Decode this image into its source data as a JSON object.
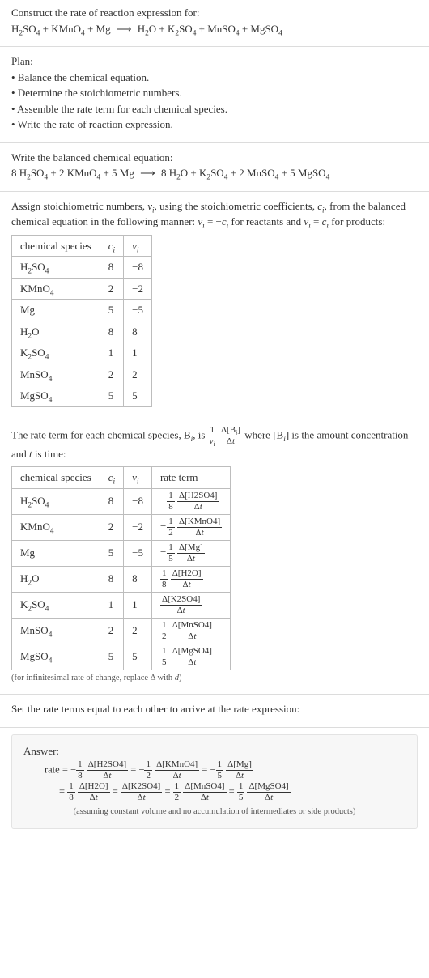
{
  "construct": {
    "intro": "Construct the rate of reaction expression for:",
    "equation_html": "H<sub>2</sub>SO<sub>4</sub> + KMnO<sub>4</sub> + Mg <span class='arrow'>&#10230;</span> H<sub>2</sub>O + K<sub>2</sub>SO<sub>4</sub> + MnSO<sub>4</sub> + MgSO<sub>4</sub>"
  },
  "plan": {
    "title": "Plan:",
    "items": [
      "Balance the chemical equation.",
      "Determine the stoichiometric numbers.",
      "Assemble the rate term for each chemical species.",
      "Write the rate of reaction expression."
    ]
  },
  "balanced": {
    "title": "Write the balanced chemical equation:",
    "equation_html": "8 H<sub>2</sub>SO<sub>4</sub> + 2 KMnO<sub>4</sub> + 5 Mg <span class='arrow'>&#10230;</span> 8 H<sub>2</sub>O + K<sub>2</sub>SO<sub>4</sub> + 2 MnSO<sub>4</sub> + 5 MgSO<sub>4</sub>"
  },
  "assign": {
    "text_html": "Assign stoichiometric numbers, <span class='italic'>ν<sub>i</sub></span>, using the stoichiometric coefficients, <span class='italic'>c<sub>i</sub></span>, from the balanced chemical equation in the following manner: <span class='italic'>ν<sub>i</sub></span> = −<span class='italic'>c<sub>i</sub></span> for reactants and <span class='italic'>ν<sub>i</sub></span> = <span class='italic'>c<sub>i</sub></span> for products:",
    "headers_html": [
      "chemical species",
      "<span class='italic'>c<sub>i</sub></span>",
      "<span class='italic'>ν<sub>i</sub></span>"
    ],
    "rows_html": [
      [
        "H<sub>2</sub>SO<sub>4</sub>",
        "8",
        "−8"
      ],
      [
        "KMnO<sub>4</sub>",
        "2",
        "−2"
      ],
      [
        "Mg",
        "5",
        "−5"
      ],
      [
        "H<sub>2</sub>O",
        "8",
        "8"
      ],
      [
        "K<sub>2</sub>SO<sub>4</sub>",
        "1",
        "1"
      ],
      [
        "MnSO<sub>4</sub>",
        "2",
        "2"
      ],
      [
        "MgSO<sub>4</sub>",
        "5",
        "5"
      ]
    ]
  },
  "rateterm": {
    "text_html": "The rate term for each chemical species, B<sub><span class='italic'>i</span></sub>, is <span class='frac'><span class='num'>1</span><span class='den italic'>ν<sub>i</sub></span></span> <span class='frac'><span class='num'>Δ[B<sub><span class='italic'>i</span></sub>]</span><span class='den'>Δ<span class='italic'>t</span></span></span> where [B<sub><span class='italic'>i</span></sub>] is the amount concentration and <span class='italic'>t</span> is time:",
    "headers_html": [
      "chemical species",
      "<span class='italic'>c<sub>i</sub></span>",
      "<span class='italic'>ν<sub>i</sub></span>",
      "rate term"
    ],
    "rows_html": [
      [
        "H<sub>2</sub>SO<sub>4</sub>",
        "8",
        "−8",
        "<span class='neg'>−</span><span class='frac'><span class='num'>1</span><span class='den'>8</span></span> <span class='frac'><span class='num'>Δ[H2SO4]</span><span class='den'>Δ<span class='italic'>t</span></span></span>"
      ],
      [
        "KMnO<sub>4</sub>",
        "2",
        "−2",
        "<span class='neg'>−</span><span class='frac'><span class='num'>1</span><span class='den'>2</span></span> <span class='frac'><span class='num'>Δ[KMnO4]</span><span class='den'>Δ<span class='italic'>t</span></span></span>"
      ],
      [
        "Mg",
        "5",
        "−5",
        "<span class='neg'>−</span><span class='frac'><span class='num'>1</span><span class='den'>5</span></span> <span class='frac'><span class='num'>Δ[Mg]</span><span class='den'>Δ<span class='italic'>t</span></span></span>"
      ],
      [
        "H<sub>2</sub>O",
        "8",
        "8",
        "<span class='frac'><span class='num'>1</span><span class='den'>8</span></span> <span class='frac'><span class='num'>Δ[H2O]</span><span class='den'>Δ<span class='italic'>t</span></span></span>"
      ],
      [
        "K<sub>2</sub>SO<sub>4</sub>",
        "1",
        "1",
        "<span class='frac'><span class='num'>Δ[K2SO4]</span><span class='den'>Δ<span class='italic'>t</span></span></span>"
      ],
      [
        "MnSO<sub>4</sub>",
        "2",
        "2",
        "<span class='frac'><span class='num'>1</span><span class='den'>2</span></span> <span class='frac'><span class='num'>Δ[MnSO4]</span><span class='den'>Δ<span class='italic'>t</span></span></span>"
      ],
      [
        "MgSO<sub>4</sub>",
        "5",
        "5",
        "<span class='frac'><span class='num'>1</span><span class='den'>5</span></span> <span class='frac'><span class='num'>Δ[MgSO4]</span><span class='den'>Δ<span class='italic'>t</span></span></span>"
      ]
    ],
    "note_html": "(for infinitesimal rate of change, replace Δ with <span class='italic'>d</span>)"
  },
  "setequal": {
    "text": "Set the rate terms equal to each other to arrive at the rate expression:"
  },
  "answer": {
    "label": "Answer:",
    "line1_html": "rate = −<span class='frac'><span class='num'>1</span><span class='den'>8</span></span> <span class='frac'><span class='num'>Δ[H2SO4]</span><span class='den'>Δ<span class='italic'>t</span></span></span> = −<span class='frac'><span class='num'>1</span><span class='den'>2</span></span> <span class='frac'><span class='num'>Δ[KMnO4]</span><span class='den'>Δ<span class='italic'>t</span></span></span> = −<span class='frac'><span class='num'>1</span><span class='den'>5</span></span> <span class='frac'><span class='num'>Δ[Mg]</span><span class='den'>Δ<span class='italic'>t</span></span></span>",
    "line2_html": "= <span class='frac'><span class='num'>1</span><span class='den'>8</span></span> <span class='frac'><span class='num'>Δ[H2O]</span><span class='den'>Δ<span class='italic'>t</span></span></span> = <span class='frac'><span class='num'>Δ[K2SO4]</span><span class='den'>Δ<span class='italic'>t</span></span></span> = <span class='frac'><span class='num'>1</span><span class='den'>2</span></span> <span class='frac'><span class='num'>Δ[MnSO4]</span><span class='den'>Δ<span class='italic'>t</span></span></span> = <span class='frac'><span class='num'>1</span><span class='den'>5</span></span> <span class='frac'><span class='num'>Δ[MgSO4]</span><span class='den'>Δ<span class='italic'>t</span></span></span>",
    "assumption": "(assuming constant volume and no accumulation of intermediates or side products)"
  }
}
